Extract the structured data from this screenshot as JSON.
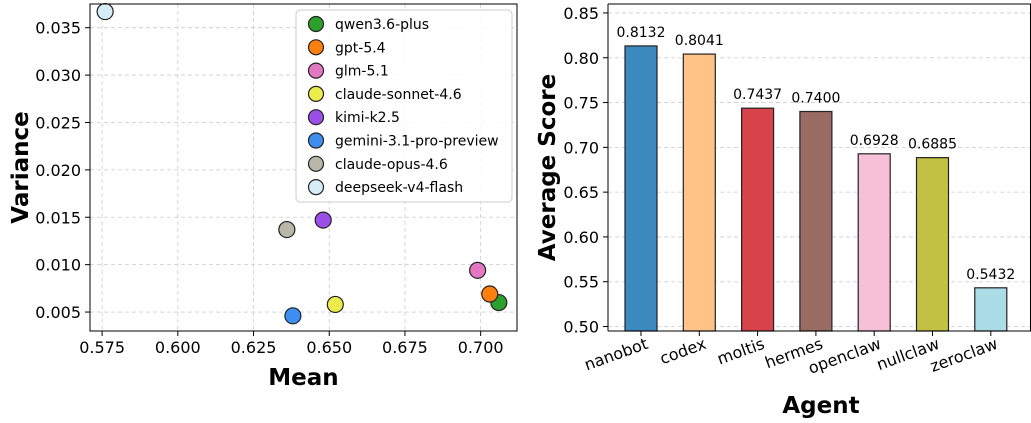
{
  "chart_data": [
    {
      "type": "scatter",
      "xlabel": "Mean",
      "ylabel": "Variance",
      "xlim": [
        0.571,
        0.712
      ],
      "ylim": [
        0.003,
        0.0375
      ],
      "xticks": [
        "0.575",
        "0.600",
        "0.625",
        "0.650",
        "0.675",
        "0.700"
      ],
      "yticks": [
        "0.005",
        "0.010",
        "0.015",
        "0.020",
        "0.025",
        "0.030",
        "0.035"
      ],
      "grid": true,
      "legend_position": "top-right",
      "series": [
        {
          "name": "qwen3.6-plus",
          "color": "#2ca02c",
          "x": 0.706,
          "y": 0.006
        },
        {
          "name": "gpt-5.4",
          "color": "#ff7f0e",
          "x": 0.703,
          "y": 0.0069
        },
        {
          "name": "glm-5.1",
          "color": "#e377c2",
          "x": 0.699,
          "y": 0.0094
        },
        {
          "name": "claude-sonnet-4.6",
          "color": "#ecec4a",
          "x": 0.652,
          "y": 0.0058
        },
        {
          "name": "kimi-k2.5",
          "color": "#9b4fe8",
          "x": 0.648,
          "y": 0.0147
        },
        {
          "name": "gemini-3.1-pro-preview",
          "color": "#3d8ef0",
          "x": 0.638,
          "y": 0.0046
        },
        {
          "name": "claude-opus-4.6",
          "color": "#b8b8a8",
          "x": 0.636,
          "y": 0.0137
        },
        {
          "name": "deepseek-v4-flash",
          "color": "#d6ecf7",
          "x": 0.576,
          "y": 0.0367
        }
      ]
    },
    {
      "type": "bar",
      "xlabel": "Agent",
      "ylabel": "Average Score",
      "ylim": [
        0.495,
        0.86
      ],
      "yticks": [
        "0.50",
        "0.55",
        "0.60",
        "0.65",
        "0.70",
        "0.75",
        "0.80",
        "0.85"
      ],
      "grid": true,
      "categories": [
        "nanobot",
        "codex",
        "moltis",
        "hermes",
        "openclaw",
        "nullclaw",
        "zeroclaw"
      ],
      "values": [
        0.8132,
        0.8041,
        0.7437,
        0.74,
        0.6928,
        0.6885,
        0.5432
      ],
      "value_labels": [
        "0.8132",
        "0.8041",
        "0.7437",
        "0.7400",
        "0.6928",
        "0.6885",
        "0.5432"
      ],
      "colors": [
        "#3c89c0",
        "#ffc387",
        "#d6434a",
        "#9a6b62",
        "#f7c0d6",
        "#c2c143",
        "#aadde6"
      ]
    }
  ]
}
